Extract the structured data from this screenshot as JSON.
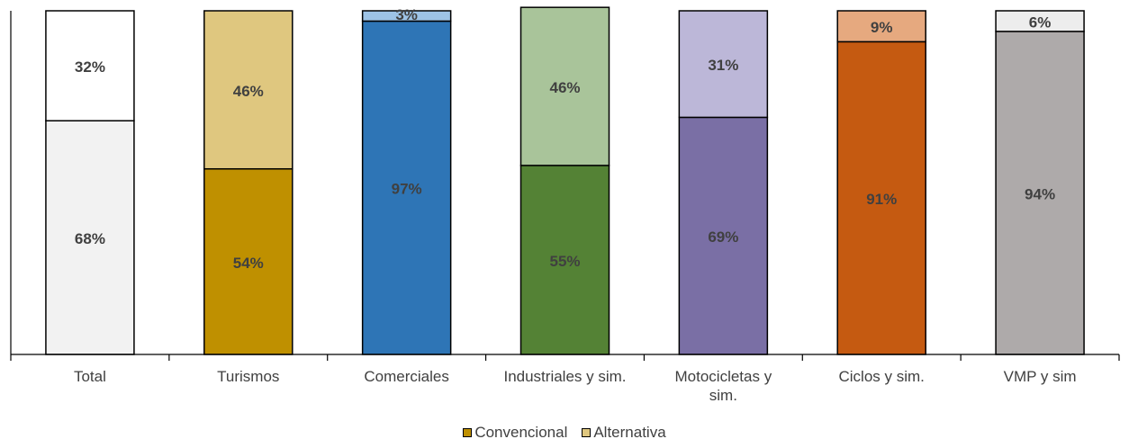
{
  "chart_data": {
    "type": "bar",
    "stacked": true,
    "categories": [
      "Total",
      "Turismos",
      "Comerciales",
      "Industriales y sim.",
      "Motocicletas y sim.",
      "Ciclos y sim.",
      "VMP y sim"
    ],
    "series": [
      {
        "name": "Convencional",
        "values": [
          68,
          54,
          97,
          55,
          69,
          91,
          94
        ],
        "labels": [
          "68%",
          "54%",
          "97%",
          "55%",
          "69%",
          "91%",
          "94%"
        ],
        "colors": [
          "#f2f2f2",
          "#bf9000",
          "#2e75b6",
          "#548235",
          "#7a6fa5",
          "#c55a11",
          "#aeaaaa"
        ]
      },
      {
        "name": "Alternativa",
        "values": [
          32,
          46,
          3,
          46,
          31,
          9,
          6
        ],
        "labels": [
          "32%",
          "46%",
          "3%",
          "46%",
          "31%",
          "9%",
          "6%"
        ],
        "colors": [
          "#ffffff",
          "#dfc77f",
          "#9dc3e6",
          "#a9c49a",
          "#bcb7d8",
          "#e6a97f",
          "#ededed"
        ]
      }
    ],
    "legend_colors": [
      "#bf9000",
      "#dfc77f"
    ],
    "ylim": [
      0,
      100
    ],
    "legend": "bottom",
    "grid": false,
    "title": "",
    "xlabel": "",
    "ylabel": ""
  }
}
